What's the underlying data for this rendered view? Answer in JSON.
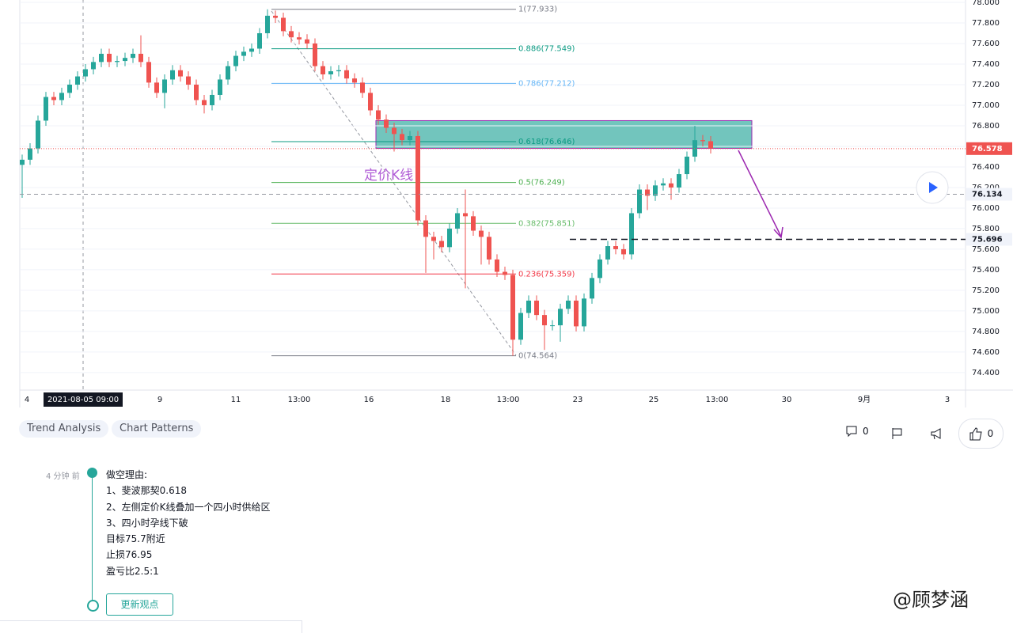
{
  "chart_data": {
    "type": "candlestick",
    "open": [
      76.42,
      76.47,
      76.58,
      76.85,
      77.08,
      77.05,
      77.12,
      77.2,
      77.28,
      77.35,
      77.42,
      77.5,
      77.42,
      77.43,
      77.46,
      77.5,
      77.42,
      77.22,
      77.12,
      77.25,
      77.34,
      77.28,
      77.2,
      77.05,
      77.0,
      77.1,
      77.25,
      77.38,
      77.48,
      77.52,
      77.55,
      77.7,
      77.87,
      77.85,
      77.72,
      77.66,
      77.64,
      77.6,
      77.38,
      77.3,
      77.33,
      77.34,
      77.26,
      77.22,
      77.12,
      76.95,
      76.86,
      76.78,
      76.72,
      76.66,
      76.7,
      75.88,
      75.72,
      75.68,
      75.62,
      75.8,
      75.95,
      75.92,
      75.78,
      75.72,
      75.5,
      75.38,
      75.35,
      74.72,
      74.98,
      75.1,
      74.96,
      74.86,
      74.86,
      75.02,
      75.1,
      74.85,
      75.12,
      75.32,
      75.5,
      75.63,
      75.6,
      75.55,
      75.95,
      76.18,
      76.12,
      76.22,
      76.24,
      76.2,
      76.33,
      76.5,
      76.66,
      76.65
    ],
    "high": [
      76.52,
      76.63,
      76.9,
      77.13,
      77.13,
      77.17,
      77.25,
      77.33,
      77.4,
      77.47,
      77.55,
      77.55,
      77.48,
      77.51,
      77.55,
      77.68,
      77.47,
      77.27,
      77.3,
      77.39,
      77.39,
      77.33,
      77.25,
      77.1,
      77.15,
      77.3,
      77.43,
      77.53,
      77.57,
      77.6,
      77.75,
      77.933,
      77.92,
      77.9,
      77.77,
      77.71,
      77.69,
      77.65,
      77.43,
      77.38,
      77.39,
      77.39,
      77.31,
      77.27,
      77.17,
      77.0,
      76.91,
      76.83,
      76.77,
      76.75,
      76.75,
      75.93,
      75.77,
      75.73,
      75.85,
      76.0,
      76.18,
      75.97,
      75.83,
      75.77,
      75.55,
      75.43,
      75.4,
      75.03,
      75.15,
      75.15,
      75.01,
      74.91,
      75.07,
      75.15,
      75.15,
      75.17,
      75.37,
      75.55,
      75.68,
      75.68,
      75.65,
      76.0,
      76.23,
      76.23,
      76.27,
      76.29,
      76.29,
      76.38,
      76.55,
      76.8,
      76.71,
      76.7
    ],
    "low": [
      76.1,
      76.42,
      76.53,
      76.8,
      77.0,
      77.0,
      77.07,
      77.15,
      77.23,
      77.3,
      77.37,
      77.37,
      77.37,
      77.38,
      77.41,
      77.37,
      77.17,
      77.07,
      76.97,
      77.2,
      77.23,
      77.15,
      77.0,
      76.92,
      76.95,
      77.05,
      77.2,
      77.33,
      77.43,
      77.47,
      77.5,
      77.65,
      77.8,
      77.67,
      77.61,
      77.59,
      77.55,
      77.33,
      77.25,
      77.25,
      77.28,
      77.21,
      77.17,
      77.07,
      76.9,
      76.81,
      76.73,
      76.55,
      76.61,
      76.61,
      75.83,
      75.37,
      75.5,
      75.57,
      75.57,
      75.75,
      75.22,
      75.73,
      75.45,
      75.45,
      75.33,
      75.3,
      74.564,
      74.67,
      74.93,
      74.91,
      74.62,
      74.81,
      74.7,
      74.97,
      74.8,
      74.8,
      75.07,
      75.27,
      75.45,
      75.55,
      75.5,
      75.5,
      75.9,
      75.98,
      76.07,
      76.17,
      76.08,
      76.15,
      76.28,
      76.45,
      76.6,
      76.53
    ],
    "close": [
      76.47,
      76.58,
      76.85,
      77.08,
      77.05,
      77.12,
      77.2,
      77.28,
      77.35,
      77.42,
      77.5,
      77.42,
      77.43,
      77.46,
      77.5,
      77.42,
      77.22,
      77.12,
      77.25,
      77.34,
      77.28,
      77.2,
      77.05,
      77.0,
      77.1,
      77.25,
      77.38,
      77.48,
      77.52,
      77.55,
      77.7,
      77.87,
      77.85,
      77.72,
      77.66,
      77.64,
      77.6,
      77.38,
      77.3,
      77.33,
      77.34,
      77.26,
      77.22,
      77.12,
      76.95,
      76.86,
      76.78,
      76.72,
      76.66,
      76.7,
      75.88,
      75.72,
      75.68,
      75.62,
      75.8,
      75.95,
      75.92,
      75.78,
      75.72,
      75.5,
      75.38,
      75.35,
      74.72,
      74.98,
      75.1,
      74.96,
      74.86,
      74.86,
      75.02,
      75.1,
      74.85,
      75.12,
      75.32,
      75.5,
      75.63,
      75.6,
      75.55,
      75.95,
      76.18,
      76.12,
      76.22,
      76.24,
      76.2,
      76.33,
      76.5,
      76.66,
      76.65,
      76.58
    ],
    "up_color": "#26a69a",
    "down_color": "#ef5350",
    "ylim": [
      74.23,
      78.023
    ],
    "yticks": [
      {
        "value": 74.4,
        "label": "74.400"
      },
      {
        "value": 74.6,
        "label": "74.600"
      },
      {
        "value": 74.8,
        "label": "74.800"
      },
      {
        "value": 75.0,
        "label": "75.000"
      },
      {
        "value": 75.2,
        "label": "75.200"
      },
      {
        "value": 75.4,
        "label": "75.400"
      },
      {
        "value": 75.6,
        "label": "75.600"
      },
      {
        "value": 75.8,
        "label": "75.800"
      },
      {
        "value": 76.0,
        "label": "76.000"
      },
      {
        "value": 76.2,
        "label": "76.200"
      },
      {
        "value": 76.4,
        "label": "76.400"
      },
      {
        "value": 76.6,
        "label": "76.600"
      },
      {
        "value": 76.8,
        "label": "76.800"
      },
      {
        "value": 77.0,
        "label": "77.000"
      },
      {
        "value": 77.2,
        "label": "77.200"
      },
      {
        "value": 77.4,
        "label": "77.400"
      },
      {
        "value": 77.6,
        "label": "77.600"
      },
      {
        "value": 77.8,
        "label": "77.800"
      },
      {
        "value": 78.0,
        "label": "78.000"
      }
    ],
    "x_labels": [
      "4",
      "2021-08-05   09:00",
      "9",
      "11",
      "13:00",
      "16",
      "18",
      "13:00",
      "23",
      "25",
      "13:00",
      "30",
      "9月",
      "3"
    ],
    "fib_levels": [
      {
        "label": "1(77.933)",
        "value": 77.933,
        "color": "#787b86"
      },
      {
        "label": "0.886(77.549)",
        "value": 77.549,
        "color": "#089981"
      },
      {
        "label": "0.786(77.212)",
        "value": 77.212,
        "color": "#64b5f6"
      },
      {
        "label": "0.618(76.646)",
        "value": 76.646,
        "color": "#089981"
      },
      {
        "label": "0.5(76.249)",
        "value": 76.249,
        "color": "#4caf50"
      },
      {
        "label": "0.382(75.851)",
        "value": 75.851,
        "color": "#66bb6a"
      },
      {
        "label": "0.236(75.359)",
        "value": 75.359,
        "color": "#f23645"
      },
      {
        "label": "0(74.564)",
        "value": 74.564,
        "color": "#787b86"
      }
    ],
    "zone": {
      "top": 76.85,
      "bottom": 76.58,
      "color": "#26a69a"
    },
    "price_labels": [
      {
        "value": 76.578,
        "color": "#ef5350"
      },
      {
        "value": 76.134,
        "color": "#f0f3fa"
      },
      {
        "value": 75.696,
        "color": "#f0f3fa"
      }
    ],
    "annotation": "定价K线"
  },
  "tags": [
    "Trend Analysis",
    "Chart Patterns"
  ],
  "social": {
    "comments": 0,
    "likes": 0
  },
  "timeline": {
    "time": "4 分钟 前",
    "lines": [
      "做空理由:",
      "1、斐波那契0.618",
      "2、左侧定价K线叠加一个四小时供给区",
      "3、四小时孕线下破",
      "目标75.7附近",
      "止损76.95",
      "盈亏比2.5:1"
    ],
    "button": "更新观点"
  },
  "watermark": "@顾梦涵"
}
